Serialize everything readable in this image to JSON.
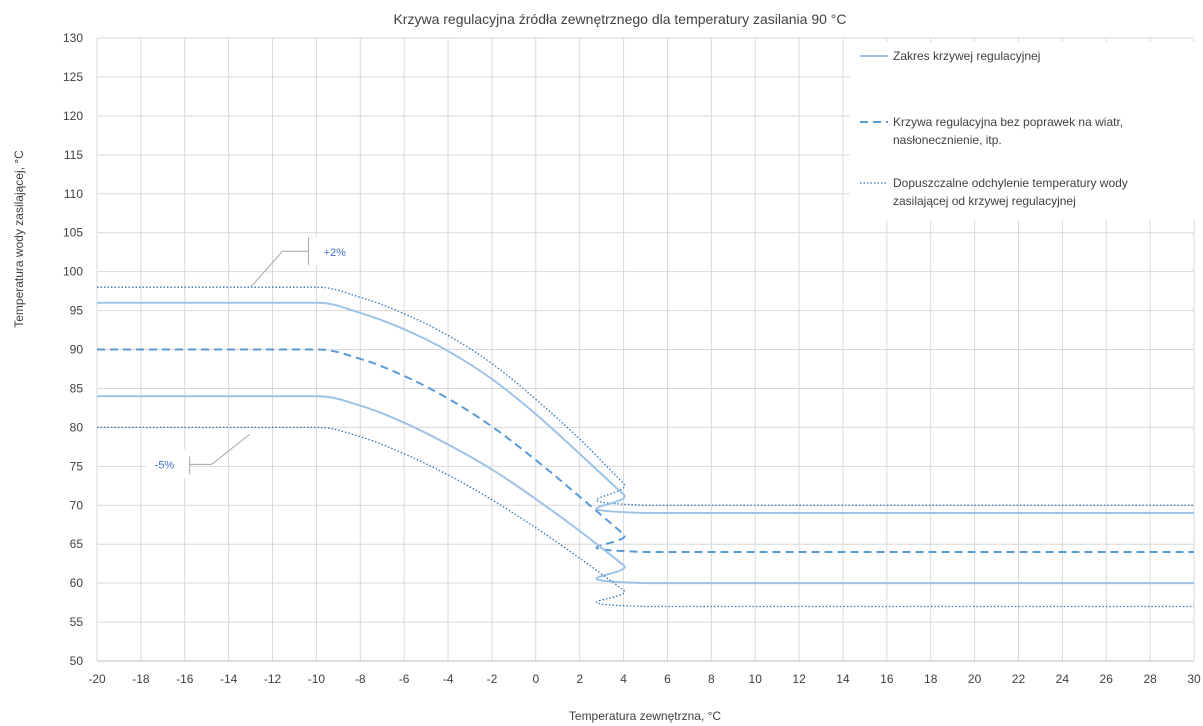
{
  "chart_data": {
    "type": "line",
    "title": "Krzywa regulacyjna źródła zewnętrznego dla temperatury zasilania 90 °C",
    "xlabel": "Temperatura zewnętrzna, °C",
    "ylabel": "Temperatura wody zasilającej, °C",
    "xlim": [
      -20,
      30
    ],
    "ylim": [
      50,
      130
    ],
    "x_ticks": [
      -20,
      -18,
      -16,
      -14,
      -12,
      -10,
      -8,
      -6,
      -4,
      -2,
      0,
      2,
      4,
      6,
      8,
      10,
      12,
      14,
      16,
      18,
      20,
      22,
      24,
      26,
      28,
      30
    ],
    "y_ticks": [
      50,
      55,
      60,
      65,
      70,
      75,
      80,
      85,
      90,
      95,
      100,
      105,
      110,
      115,
      120,
      125,
      130
    ],
    "x": [
      -20,
      -10,
      -8,
      -6,
      -4,
      -2,
      0,
      2,
      4,
      5,
      30
    ],
    "series": [
      {
        "style": "dotted",
        "values": [
          98,
          98,
          96.7,
          94.6,
          91.8,
          88.2,
          83.6,
          78.5,
          72.8,
          70,
          70
        ]
      },
      {
        "style": "solid",
        "values": [
          96,
          96,
          94.7,
          92.6,
          89.8,
          86.2,
          81.7,
          76.6,
          71.4,
          69,
          69
        ]
      },
      {
        "style": "dashed",
        "values": [
          90,
          90,
          88.8,
          86.6,
          83.7,
          80.1,
          75.8,
          71.1,
          66.3,
          64,
          64
        ]
      },
      {
        "style": "solid",
        "values": [
          84,
          84,
          82.8,
          80.6,
          77.8,
          74.6,
          70.8,
          66.7,
          62.3,
          60,
          60
        ]
      },
      {
        "style": "dotted",
        "values": [
          80,
          80,
          78.8,
          76.6,
          73.9,
          70.7,
          67.1,
          63.2,
          59.1,
          57,
          57
        ]
      }
    ],
    "legend": {
      "position": "top-right",
      "entries": [
        {
          "style": "solid",
          "label_lines": [
            "Zakres krzywej regulacyjnej"
          ]
        },
        {
          "style": "dashed",
          "label_lines": [
            "Krzywa regulacyjna bez poprawek na wiatr,",
            "nasłonecznienie, itp."
          ]
        },
        {
          "style": "dotted",
          "label_lines": [
            "Dopuszczalne odchylenie temperatury wody",
            "zasilającej od krzywej regulacyjnej"
          ]
        }
      ]
    },
    "annotations": [
      {
        "text": "+2%",
        "x": -13,
        "y": 98
      },
      {
        "text": "-5%",
        "x": -14.5,
        "y": 80
      }
    ],
    "grid": true,
    "colors": {
      "range_line": "#9dc3e6",
      "dashed_line": "#5b9bd5",
      "dotted_line": "#2e75b6",
      "grid": "#d9d9d9",
      "annotation_text": "#4472c4",
      "leader": "#a6a6a6"
    }
  }
}
